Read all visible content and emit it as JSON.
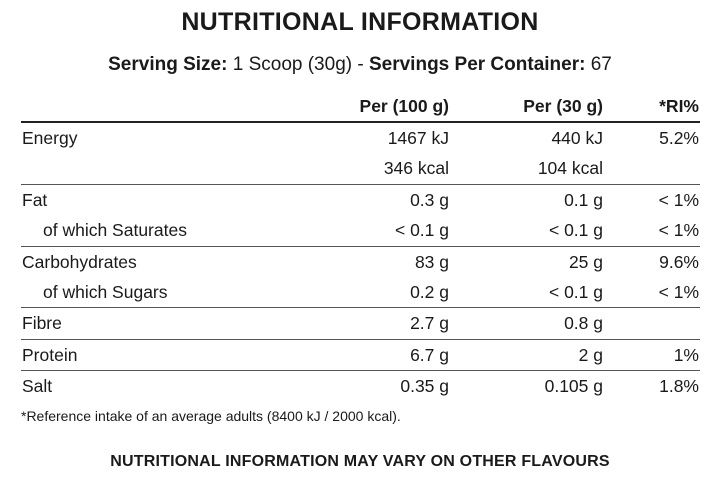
{
  "title": "NUTRITIONAL INFORMATION",
  "serving": {
    "size_label": "Serving Size:",
    "size_value": " 1 Scoop (30g) - ",
    "per_container_label": "Servings Per Container:",
    "per_container_value": " 67"
  },
  "table": {
    "headers": {
      "per100": "Per (100 g)",
      "per30": "Per (30 g)",
      "ri": "*RI%"
    },
    "rows": [
      {
        "name": "Energy",
        "per100": "1467 kJ",
        "per30": "440 kJ",
        "ri": "5.2%"
      },
      {
        "name": "",
        "per100": "346 kcal",
        "per30": "104 kcal",
        "ri": ""
      },
      {
        "name": "Fat",
        "per100": "0.3 g",
        "per30": "0.1 g",
        "ri": "< 1%"
      },
      {
        "name": "of which Saturates",
        "per100": "< 0.1 g",
        "per30": "< 0.1 g",
        "ri": "< 1%"
      },
      {
        "name": "Carbohydrates",
        "per100": "83 g",
        "per30": "25 g",
        "ri": "9.6%"
      },
      {
        "name": "of which Sugars",
        "per100": "0.2 g",
        "per30": "< 0.1 g",
        "ri": "< 1%"
      },
      {
        "name": "Fibre",
        "per100": "2.7 g",
        "per30": "0.8 g",
        "ri": ""
      },
      {
        "name": "Protein",
        "per100": "6.7 g",
        "per30": "2 g",
        "ri": "1%"
      },
      {
        "name": "Salt",
        "per100": "0.35 g",
        "per30": "0.105 g",
        "ri": "1.8%"
      }
    ]
  },
  "footnote": "*Reference intake of an average adults (8400 kJ / 2000 kcal).",
  "warning": "NUTRITIONAL INFORMATION MAY VARY ON OTHER FLAVOURS"
}
